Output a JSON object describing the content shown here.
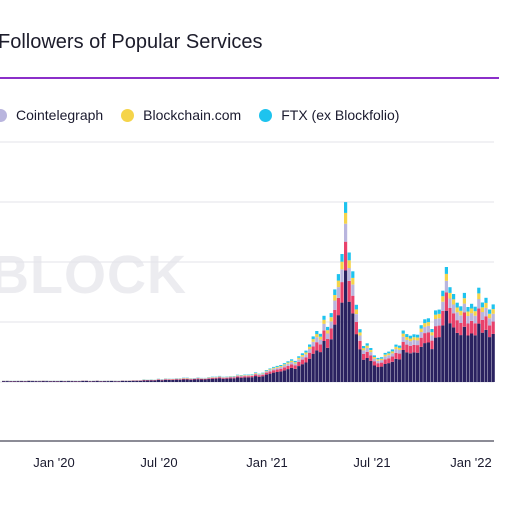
{
  "chart_data": {
    "type": "bar",
    "stacked": true,
    "title": "Followers of Popular Services",
    "legend": {
      "placement": "top-left"
    },
    "series": [
      {
        "name": "Cointelegraph",
        "color": "#b9b5de"
      },
      {
        "name": "Blockchain.com",
        "color": "#f5d44a"
      },
      {
        "name": "FTX (ex Blockfolio)",
        "color": "#1ec3ee"
      }
    ],
    "hidden_series_colors": {
      "base": "#2a2260",
      "second": "#e8416b"
    },
    "x_axis": {
      "ticks": [
        "Jan '20",
        "Jul '20",
        "Jan '21",
        "Jul '21",
        "Jan '22"
      ]
    },
    "grid": true,
    "watermark": "BLOCK"
  }
}
